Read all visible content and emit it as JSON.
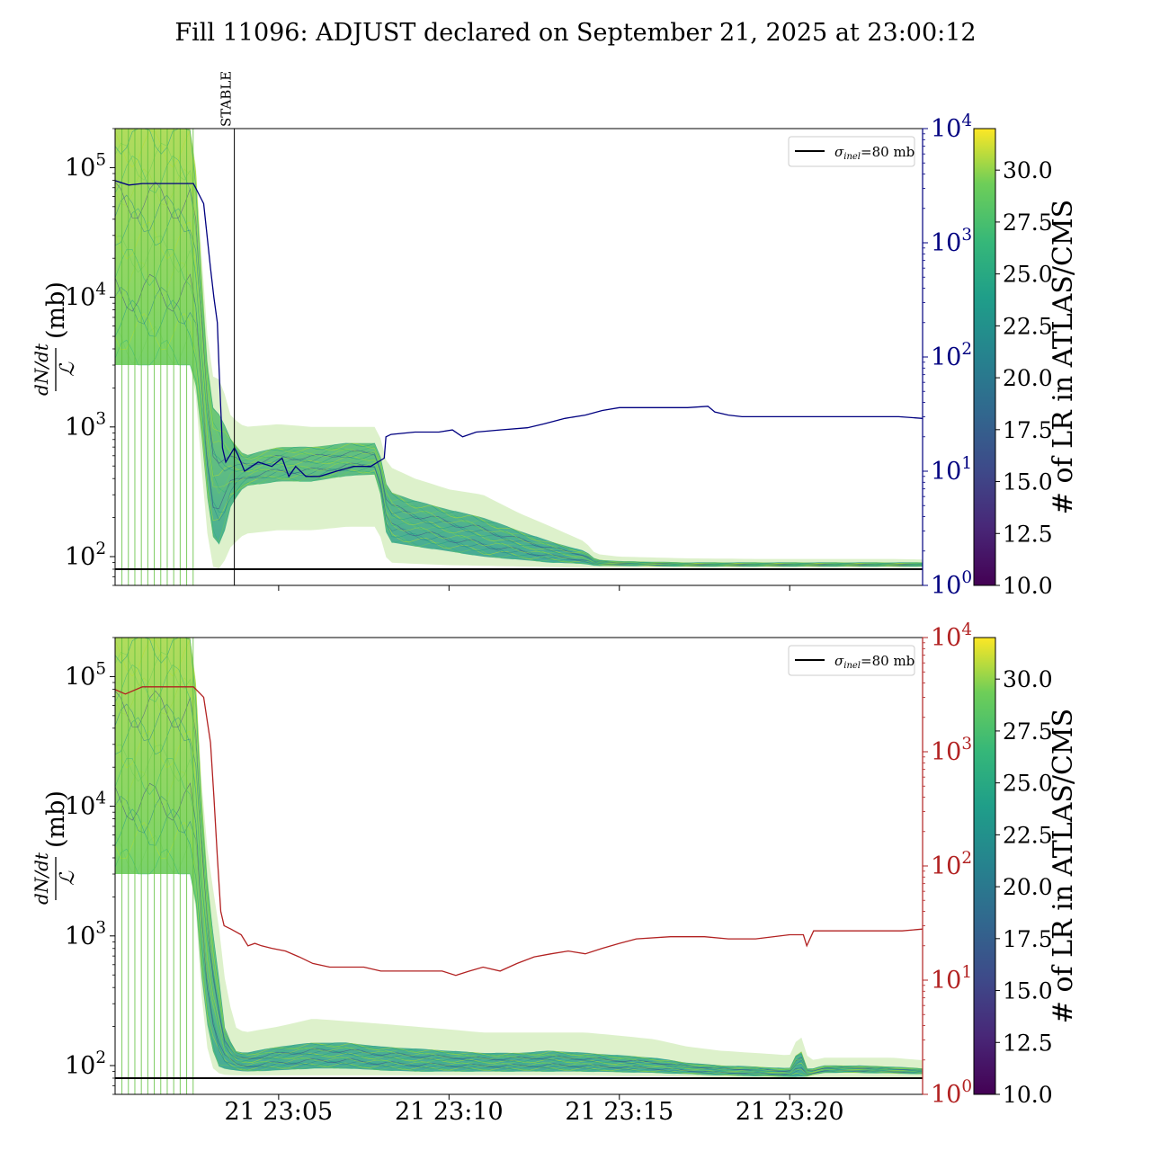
{
  "title": "Fill 11096: ADJUST declared on September 21, 2025 at 23:00:12",
  "colors": {
    "top_line": "#000080",
    "bottom_line": "#b22222",
    "reference_line": "#000000"
  },
  "x_tick_labels": [
    "21 23:05",
    "21 23:10",
    "21 23:15",
    "21 23:20"
  ],
  "chart_data": [
    {
      "type": "line",
      "panel": "top",
      "ylabel_numerator": "dN/dt",
      "ylabel_denominator": "ℒ",
      "ylabel_unit": "(mb)",
      "y_scale": "log",
      "ylim": [
        60,
        200000
      ],
      "yticks": [
        "10^2",
        "10^3",
        "10^4",
        "10^5"
      ],
      "right_axis": {
        "scale": "log",
        "ylim": [
          1,
          10000
        ],
        "ticks": [
          "10^0",
          "10^1",
          "10^2",
          "10^3",
          "10^4"
        ]
      },
      "xlim_min": [
        0.2,
        23.9
      ],
      "annotation": "STABLE",
      "annotation_x_min": 3.7,
      "legend": {
        "label_symbol": "σ",
        "label_sub": "inel",
        "label_rest": "=80 mb",
        "placement": "upper right"
      },
      "reference_value": 80,
      "colorbar": {
        "label": "# of LR in ATLAS/CMS",
        "range": [
          10,
          32
        ],
        "ticks": [
          "10.0",
          "12.5",
          "15.0",
          "17.5",
          "20.0",
          "22.5",
          "25.0",
          "27.5",
          "30.0"
        ]
      },
      "right_series": {
        "x_min": [
          0.2,
          0.6,
          1.0,
          1.5,
          2.0,
          2.5,
          2.8,
          3.0,
          3.1,
          3.2,
          3.25,
          3.35,
          3.45,
          3.7,
          3.8,
          4.0,
          4.4,
          4.8,
          5.1,
          5.3,
          5.5,
          5.8,
          6.2,
          6.7,
          7.2,
          7.7,
          8.1,
          8.15,
          8.3,
          9.0,
          9.7,
          10.1,
          10.4,
          10.8,
          11.5,
          12.3,
          12.8,
          13.4,
          14.0,
          14.5,
          15.0,
          16.0,
          17.0,
          17.6,
          17.8,
          18.2,
          18.6,
          19.5,
          20.5,
          21.5,
          22.5,
          23.2,
          23.9
        ],
        "y": [
          3500,
          3200,
          3300,
          3300,
          3300,
          3300,
          2200,
          600,
          330,
          200,
          80,
          16,
          12,
          16,
          14,
          10,
          12,
          11,
          13,
          9,
          11,
          9,
          9,
          10,
          11,
          11,
          13,
          20,
          21,
          22,
          22,
          23,
          20,
          22,
          23,
          24,
          26,
          29,
          31,
          34,
          36,
          36,
          36,
          37,
          33,
          31,
          30,
          30,
          30,
          30,
          30,
          30,
          29
        ]
      },
      "band": {
        "x_min": [
          0.2,
          2.5,
          2.8,
          3.0,
          3.3,
          3.6,
          4.0,
          5.0,
          6.0,
          7.0,
          7.9,
          8.2,
          9.0,
          10.0,
          11.0,
          12.0,
          13.0,
          14.0,
          14.3,
          15.0,
          17.0,
          19.0,
          21.0,
          23.0,
          23.9
        ],
        "upper": [
          200000,
          200000,
          12000,
          2500,
          2300,
          1200,
          1000,
          1050,
          1000,
          1000,
          1000,
          500,
          400,
          330,
          300,
          220,
          170,
          130,
          105,
          100,
          97,
          96,
          96,
          96,
          95
        ],
        "core_high": [
          200000,
          200000,
          8000,
          1500,
          1200,
          800,
          600,
          700,
          700,
          750,
          750,
          320,
          270,
          230,
          200,
          160,
          130,
          110,
          95,
          92,
          90,
          90,
          90,
          90,
          90
        ],
        "core_low": [
          3000,
          3000,
          600,
          150,
          120,
          250,
          350,
          380,
          380,
          420,
          430,
          130,
          120,
          110,
          100,
          95,
          90,
          88,
          85,
          85,
          84,
          84,
          84,
          84,
          84
        ],
        "lower": [
          3000,
          3000,
          300,
          85,
          80,
          120,
          150,
          160,
          160,
          170,
          170,
          90,
          88,
          86,
          85,
          84,
          83,
          82,
          82,
          82,
          82,
          82,
          82,
          82,
          82
        ]
      }
    },
    {
      "type": "line",
      "panel": "bottom",
      "ylabel_numerator": "dN/dt",
      "ylabel_denominator": "ℒ",
      "ylabel_unit": "(mb)",
      "y_scale": "log",
      "ylim": [
        60,
        200000
      ],
      "yticks": [
        "10^2",
        "10^3",
        "10^4",
        "10^5"
      ],
      "right_axis": {
        "scale": "log",
        "ylim": [
          1,
          10000
        ],
        "ticks": [
          "10^0",
          "10^1",
          "10^2",
          "10^3",
          "10^4"
        ]
      },
      "xlim_min": [
        0.2,
        23.9
      ],
      "legend": {
        "label_symbol": "σ",
        "label_sub": "inel",
        "label_rest": "=80 mb",
        "placement": "upper right"
      },
      "reference_value": 80,
      "colorbar": {
        "label": "# of LR in ATLAS/CMS",
        "range": [
          10,
          32
        ],
        "ticks": [
          "10.0",
          "12.5",
          "15.0",
          "17.5",
          "20.0",
          "22.5",
          "25.0",
          "27.5",
          "30.0"
        ]
      },
      "right_series": {
        "x_min": [
          0.2,
          0.5,
          1.0,
          1.5,
          2.0,
          2.5,
          2.8,
          3.0,
          3.1,
          3.2,
          3.3,
          3.4,
          3.6,
          3.9,
          4.1,
          4.3,
          4.5,
          4.8,
          5.2,
          5.6,
          6.0,
          6.5,
          7.0,
          7.5,
          8.0,
          8.6,
          9.2,
          9.8,
          10.2,
          10.6,
          11.0,
          11.5,
          12.0,
          12.5,
          13.0,
          13.5,
          14.0,
          14.5,
          15.0,
          15.5,
          16.5,
          17.5,
          18.2,
          19.0,
          20.0,
          20.4,
          20.5,
          20.7,
          21.5,
          22.5,
          23.3,
          23.9
        ],
        "y": [
          3500,
          3200,
          3700,
          3700,
          3700,
          3700,
          3000,
          1200,
          400,
          120,
          40,
          30,
          28,
          25,
          20,
          21,
          20,
          19,
          18,
          16,
          14,
          13,
          13,
          13,
          12,
          12,
          12,
          12,
          11,
          12,
          13,
          12,
          14,
          16,
          17,
          18,
          17,
          19,
          21,
          23,
          24,
          24,
          23,
          23,
          25,
          25,
          20,
          27,
          27,
          27,
          27,
          28
        ]
      },
      "band": {
        "x_min": [
          0.2,
          2.5,
          2.8,
          3.0,
          3.2,
          3.4,
          3.7,
          4.0,
          5.0,
          6.0,
          7.0,
          8.0,
          9.0,
          10.0,
          11.0,
          12.0,
          13.0,
          14.0,
          15.0,
          16.0,
          17.0,
          18.0,
          19.0,
          20.0,
          20.3,
          20.5,
          20.7,
          21.0,
          22.0,
          23.0,
          23.9
        ],
        "upper": [
          200000,
          200000,
          8000,
          3000,
          1500,
          500,
          200,
          180,
          200,
          230,
          220,
          210,
          200,
          190,
          180,
          180,
          180,
          180,
          170,
          160,
          140,
          130,
          125,
          120,
          180,
          120,
          110,
          115,
          115,
          115,
          110
        ],
        "core_high": [
          200000,
          200000,
          6000,
          1500,
          600,
          200,
          130,
          125,
          140,
          150,
          150,
          140,
          135,
          130,
          125,
          125,
          130,
          125,
          120,
          115,
          105,
          100,
          98,
          95,
          140,
          95,
          95,
          100,
          100,
          98,
          95
        ],
        "core_low": [
          3000,
          3000,
          300,
          150,
          100,
          95,
          92,
          90,
          92,
          95,
          95,
          92,
          90,
          90,
          90,
          90,
          90,
          90,
          89,
          88,
          86,
          84,
          83,
          82,
          82,
          82,
          85,
          88,
          88,
          87,
          86
        ],
        "lower": [
          3000,
          3000,
          200,
          100,
          88,
          85,
          84,
          84,
          84,
          84,
          84,
          84,
          84,
          84,
          84,
          84,
          84,
          84,
          83,
          83,
          82,
          81,
          81,
          80,
          80,
          80,
          80,
          80,
          80,
          80,
          80
        ]
      }
    }
  ]
}
